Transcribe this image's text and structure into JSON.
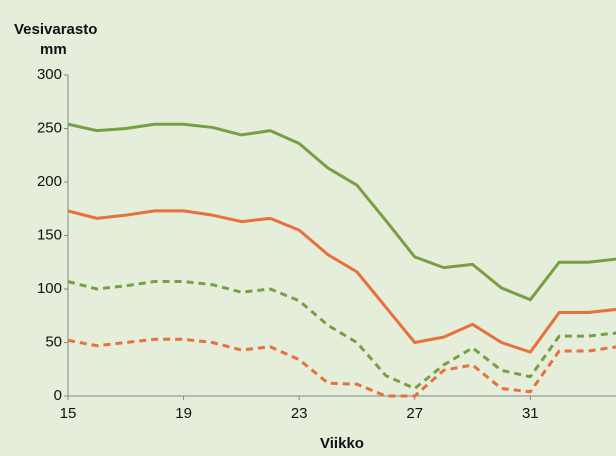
{
  "chart_data": {
    "type": "line",
    "title": "Vesivarasto",
    "subtitle": "mm",
    "x_label": "Viikko",
    "x": [
      15,
      16,
      17,
      18,
      19,
      20,
      21,
      22,
      23,
      24,
      25,
      26,
      27,
      28,
      29,
      30,
      31,
      32,
      33,
      34
    ],
    "series": [
      {
        "color": "#77a043",
        "dashed": false,
        "values": [
          254,
          248,
          250,
          254,
          254,
          251,
          244,
          248,
          236,
          213,
          197,
          164,
          130,
          120,
          123,
          101,
          90,
          125,
          125,
          128
        ]
      },
      {
        "color": "#e8703a",
        "dashed": false,
        "values": [
          173,
          166,
          169,
          173,
          173,
          169,
          163,
          166,
          155,
          132,
          116,
          83,
          50,
          55,
          67,
          50,
          41,
          78,
          78,
          81
        ]
      },
      {
        "color": "#77a043",
        "dashed": true,
        "values": [
          107,
          100,
          103,
          107,
          107,
          104,
          97,
          100,
          89,
          66,
          50,
          19,
          7,
          29,
          45,
          24,
          18,
          56,
          56,
          59
        ]
      },
      {
        "color": "#e8703a",
        "dashed": true,
        "values": [
          52,
          47,
          50,
          53,
          53,
          50,
          43,
          46,
          34,
          12,
          11,
          0,
          0,
          24,
          29,
          7,
          4,
          42,
          42,
          46
        ]
      }
    ],
    "xlim": [
      15,
      34
    ],
    "xticks": [
      15,
      19,
      23,
      27,
      31
    ],
    "ylim": [
      0,
      300
    ],
    "yticks": [
      0,
      50,
      100,
      150,
      200,
      250,
      300
    ],
    "grid": false
  }
}
